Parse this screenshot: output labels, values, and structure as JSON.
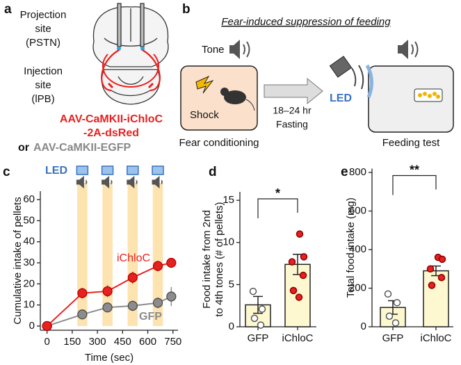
{
  "panels": {
    "a": {
      "label": "a",
      "projection": [
        "Projection",
        "site",
        "(PSTN)"
      ],
      "injection": [
        "Injection",
        "site",
        "(lPB)"
      ],
      "virus1": [
        "AAV-CaMKII-iChloC",
        "-2A-dsRed"
      ],
      "or": "or",
      "virus2": "AAV-CaMKII-EGFP"
    },
    "b": {
      "label": "b",
      "title": "Fear-induced suppression of feeding",
      "tone": "Tone",
      "shock": "Shock",
      "fasting": [
        "18–24 hr",
        "Fasting"
      ],
      "led": "LED",
      "fear": "Fear conditioning",
      "feeding": "Feeding test"
    }
  },
  "chart_data": [
    {
      "type": "line",
      "label": "c",
      "led": "LED",
      "ylabel": "Cumulative intake of pellets",
      "xlabel": "Time (sec)",
      "x": [
        0,
        210,
        360,
        510,
        660,
        740
      ],
      "xlim": [
        -40,
        780
      ],
      "xticks": [
        0,
        150,
        300,
        450,
        600,
        750
      ],
      "ylim": [
        -2,
        64
      ],
      "yticks": [
        0,
        10,
        20,
        30,
        40,
        50,
        60
      ],
      "stimuli": [
        [
          180,
          240
        ],
        [
          330,
          390
        ],
        [
          480,
          540
        ],
        [
          630,
          690
        ]
      ],
      "stimulus_color": "#fde3b0",
      "series": [
        {
          "name": "iChloC",
          "color": "#e8201f",
          "values": [
            0,
            15.6,
            16.5,
            23,
            28.5,
            30
          ],
          "errors": [
            0,
            2.5,
            2.8,
            2.8,
            2.5,
            2.2
          ]
        },
        {
          "name": "GFP",
          "color": "#8c8c8c",
          "values": [
            0,
            5.5,
            8.8,
            9.6,
            11,
            14
          ],
          "errors": [
            0,
            1.2,
            2,
            2.5,
            2.6,
            4.5
          ]
        }
      ]
    },
    {
      "type": "bar",
      "label": "d",
      "ylabel": [
        "Food intake from 2nd",
        "to 4th tones (# of pellets)"
      ],
      "categories": [
        "GFP",
        "iChloC"
      ],
      "values": [
        2.6,
        7.4
      ],
      "errors": [
        1.0,
        1.2
      ],
      "points": [
        [
          4.2,
          2.1,
          1.0,
          0.2
        ],
        [
          11,
          8.3,
          7.7,
          6.1,
          4.3,
          3.5
        ]
      ],
      "point_colors": [
        "#ffffff",
        "#e8201f"
      ],
      "color": "#fdf8cf",
      "ylim": [
        0,
        16
      ],
      "yticks": [
        0,
        5,
        10,
        15
      ],
      "significance": "*"
    },
    {
      "type": "bar",
      "label": "e",
      "ylabel": [
        "Total food intake (mg)"
      ],
      "categories": [
        "GFP",
        "iChloC"
      ],
      "values": [
        100,
        290
      ],
      "errors": [
        35,
        25
      ],
      "points": [
        [
          170,
          125,
          55,
          20
        ],
        [
          360,
          350,
          300,
          255,
          215
        ]
      ],
      "point_colors": [
        "#ffffff",
        "#e8201f"
      ],
      "color": "#fdf8cf",
      "ylim": [
        0,
        820
      ],
      "yticks": [
        0,
        200,
        400,
        600,
        800
      ],
      "significance": "**"
    }
  ]
}
